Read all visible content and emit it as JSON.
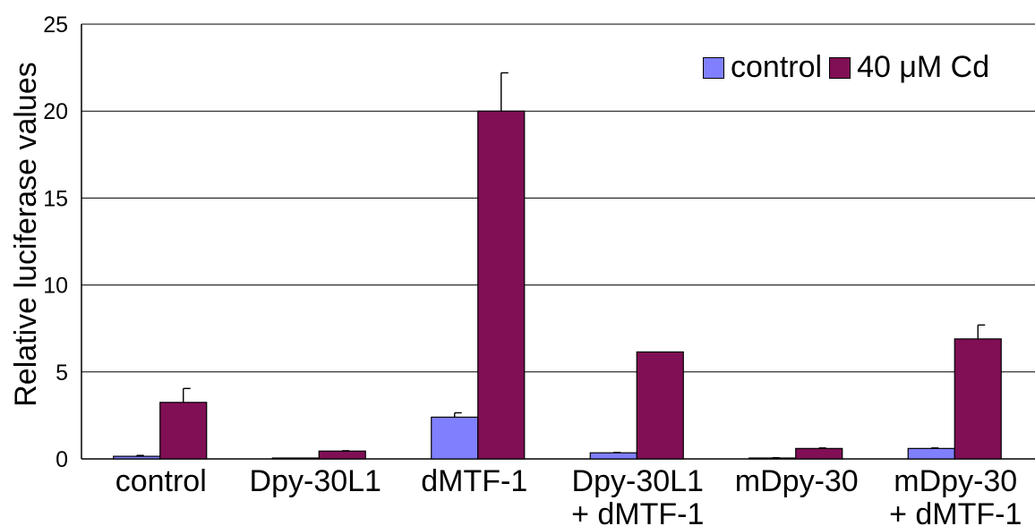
{
  "chart_data": {
    "type": "bar",
    "title": "",
    "xlabel": "",
    "ylabel": "Relative luciferase values",
    "ylim": [
      0,
      25
    ],
    "yticks": [
      "0",
      "5",
      "10",
      "15",
      "20",
      "25"
    ],
    "grid": true,
    "legend_position": "top-right",
    "categories": [
      [
        "control"
      ],
      [
        "Dpy-30L1"
      ],
      [
        "dMTF-1"
      ],
      [
        "Dpy-30L1",
        "+ dMTF-1"
      ],
      [
        "mDpy-30"
      ],
      [
        "mDpy-30",
        "+ dMTF-1"
      ]
    ],
    "series": [
      {
        "name": "control",
        "color": "#8080ff",
        "values": [
          0.15,
          0.02,
          2.4,
          0.35,
          0.05,
          0.6
        ],
        "errors": [
          0.05,
          0.0,
          0.25,
          0.02,
          0.02,
          0.03
        ]
      },
      {
        "name": "40 μM Cd",
        "color": "#800f55",
        "values": [
          3.25,
          0.45,
          20.0,
          6.15,
          0.6,
          6.9
        ],
        "errors": [
          0.8,
          0.02,
          2.2,
          0.0,
          0.03,
          0.8
        ]
      }
    ]
  }
}
